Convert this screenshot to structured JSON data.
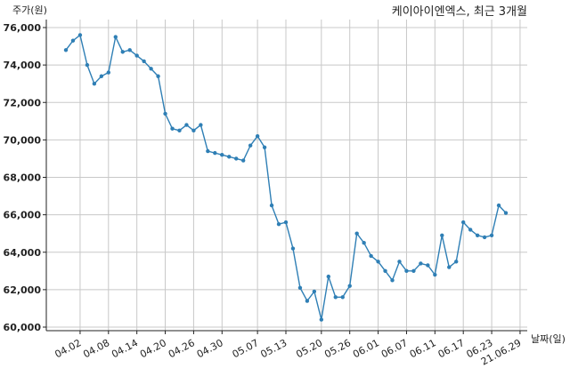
{
  "chart_data": {
    "type": "line",
    "title": "케이아이엔엑스, 최근 3개월",
    "xlabel": "날짜(일)",
    "ylabel": "주가(원)",
    "ylim": [
      60000,
      76000
    ],
    "yticks": [
      60000,
      62000,
      64000,
      66000,
      68000,
      70000,
      72000,
      74000,
      76000
    ],
    "ytick_labels": [
      "60,000",
      "62,000",
      "64,000",
      "66,000",
      "68,000",
      "70,000",
      "72,000",
      "74,000",
      "76,000"
    ],
    "grid": true,
    "xtick_labels": [
      "04.02",
      "04.08",
      "04.14",
      "04.20",
      "04.26",
      "04.30",
      "05.07",
      "05.13",
      "05.20",
      "05.26",
      "06.01",
      "06.07",
      "06.11",
      "06.17",
      "06.23",
      "21.06.29"
    ],
    "xtick_indices": [
      2,
      6,
      10,
      14,
      18,
      22,
      27,
      31,
      36,
      40,
      44,
      48,
      52,
      56,
      60,
      64
    ],
    "series": [
      {
        "values": [
          74800,
          75300,
          75600,
          74000,
          73000,
          73400,
          73600,
          75500,
          74700,
          74800,
          74500,
          74200,
          73800,
          73400,
          71400,
          70600,
          70500,
          70800,
          70500,
          70800,
          69400,
          69300,
          69200,
          69100,
          69000,
          68900,
          69700,
          70200,
          69600,
          66500,
          65500,
          65600,
          64200,
          62100,
          61400,
          61900,
          60400,
          62700,
          61600,
          61600,
          62200,
          65000,
          64500,
          63800,
          63500,
          63000,
          62500,
          63500,
          63000,
          63000,
          63400,
          63300,
          62800,
          64900,
          63200,
          63500,
          65600,
          65200,
          64900,
          64800,
          64900,
          66500,
          66100
        ]
      }
    ]
  },
  "colors": {
    "line": "#2f7fb5",
    "grid": "#c8c8c8"
  }
}
